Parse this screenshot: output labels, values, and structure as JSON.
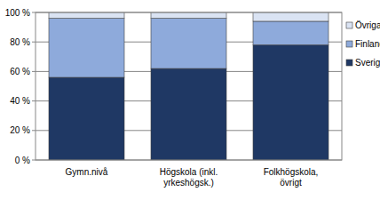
{
  "chart_data": {
    "type": "bar",
    "stacked": true,
    "grid": true,
    "legend": "right",
    "categories": [
      "Gymn.nivå",
      "Högskola (inkl. yrkeshögsk.)",
      "Folkhögskola, övrigt"
    ],
    "series": [
      {
        "name": "Sverige",
        "color": "#1f3864",
        "values": [
          56,
          62,
          78
        ]
      },
      {
        "name": "Finland",
        "color": "#8eaadb",
        "values": [
          40,
          34,
          16
        ]
      },
      {
        "name": "Övriga",
        "color": "#dae3f3",
        "values": [
          4,
          4,
          6
        ]
      }
    ],
    "ylim": [
      0,
      100
    ],
    "yticks": [
      {
        "value": 0,
        "label": "0 %"
      },
      {
        "value": 20,
        "label": "20 %"
      },
      {
        "value": 40,
        "label": "40 %"
      },
      {
        "value": 60,
        "label": "60 %"
      },
      {
        "value": 80,
        "label": "80 %"
      },
      {
        "value": 100,
        "label": "100 %"
      }
    ]
  }
}
